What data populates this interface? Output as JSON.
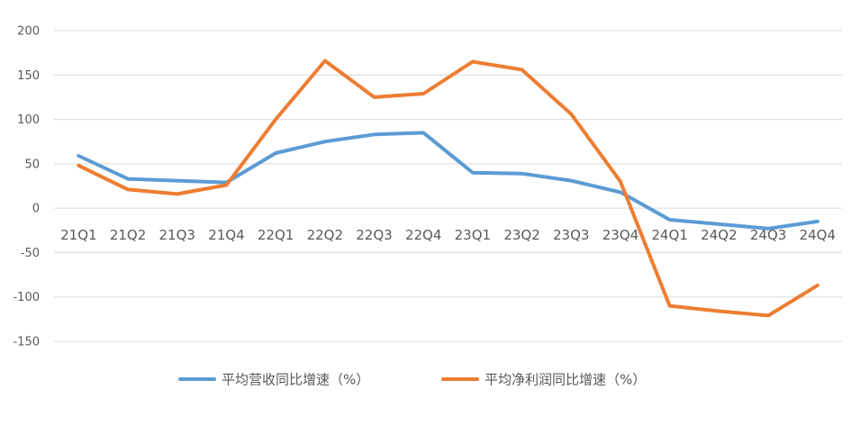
{
  "chart_data": {
    "type": "line",
    "title": "",
    "xlabel": "",
    "ylabel": "",
    "categories": [
      "21Q1",
      "21Q2",
      "21Q3",
      "21Q4",
      "22Q1",
      "22Q2",
      "22Q3",
      "22Q4",
      "23Q1",
      "23Q2",
      "23Q3",
      "23Q4",
      "24Q1",
      "24Q2",
      "24Q3",
      "24Q4"
    ],
    "ylim": [
      -150,
      200
    ],
    "yticks": [
      200,
      150,
      100,
      50,
      0,
      -50,
      -100,
      -150
    ],
    "grid": true,
    "legend_position": "bottom",
    "series": [
      {
        "name": "平均营收同比增速（%）",
        "color": "#5b9bd5",
        "values": [
          59,
          33,
          31,
          29,
          62,
          75,
          83,
          85,
          40,
          39,
          31,
          18,
          -13,
          -18,
          -23,
          -15
        ]
      },
      {
        "name": "平均净利润同比增速（%）",
        "color": "#ed7d31",
        "values": [
          48,
          21,
          16,
          26,
          100,
          166,
          125,
          129,
          165,
          156,
          106,
          30,
          -110,
          -116,
          -121,
          -87
        ]
      }
    ]
  }
}
